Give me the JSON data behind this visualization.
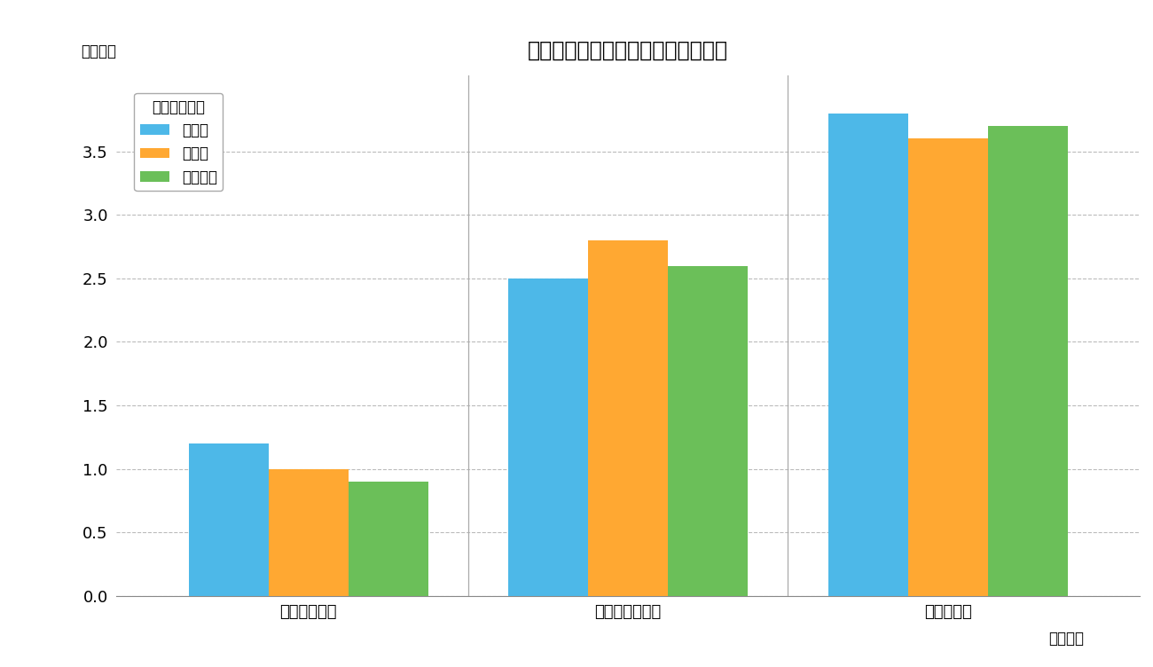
{
  "title": "問題発生率の比較（全国、市比較）",
  "ylabel": "（割合）",
  "xlabel_note": "（指標）",
  "categories": [
    "不登校出現率",
    "問題行動発生率",
    "遅刻頻出率"
  ],
  "series": [
    {
      "label": "当該校",
      "color": "#4DB8E8",
      "values": [
        1.2,
        2.5,
        3.8
      ]
    },
    {
      "label": "市平均",
      "color": "#FFA832",
      "values": [
        1.0,
        2.8,
        3.6
      ]
    },
    {
      "label": "全国平均",
      "color": "#6BBF59",
      "values": [
        0.9,
        2.6,
        3.7
      ]
    }
  ],
  "legend_title": "データソース",
  "ylim": [
    0,
    4.1
  ],
  "yticks": [
    0.0,
    0.5,
    1.0,
    1.5,
    2.0,
    2.5,
    3.0,
    3.5
  ],
  "background_color": "#FFFFFF",
  "grid_color": "#BBBBBB",
  "bar_width": 0.25,
  "divider_color": "#AAAAAA",
  "spine_color": "#888888"
}
